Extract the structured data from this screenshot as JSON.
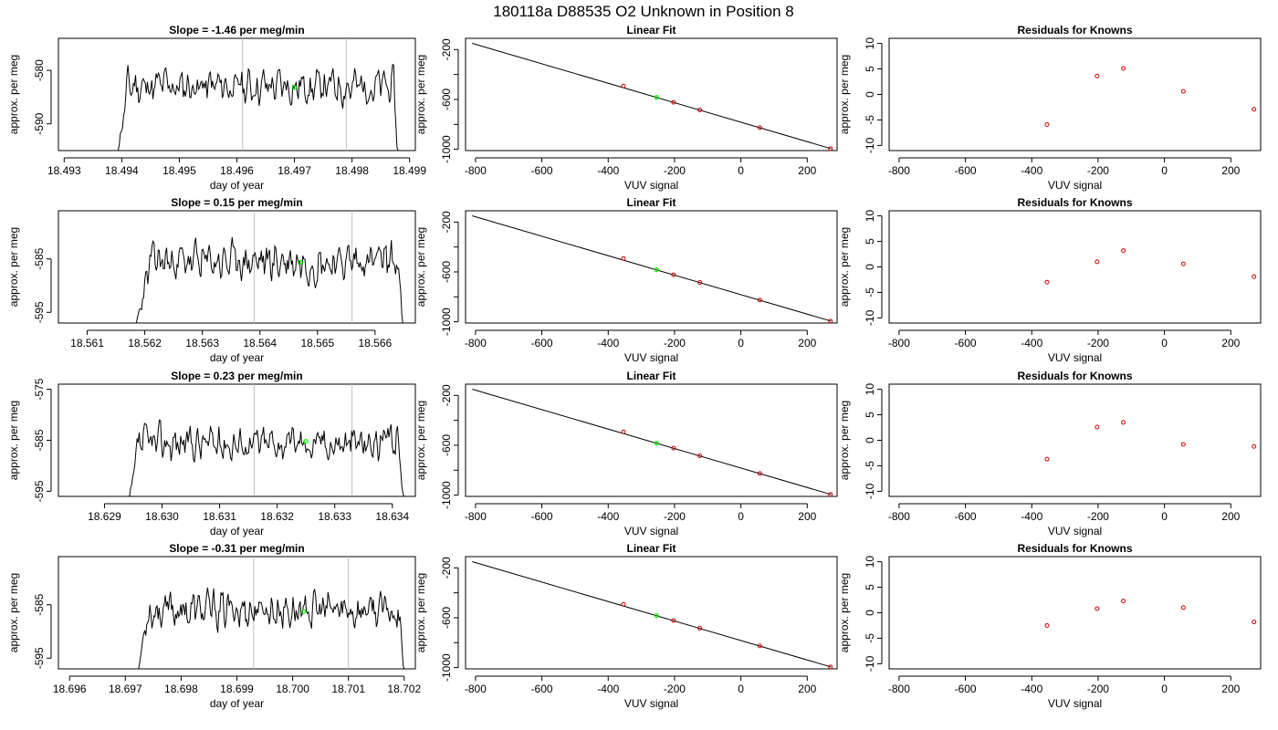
{
  "page_title": "180118a     D88535   O2 Unknown in Position  8",
  "colors": {
    "trace": "#000000",
    "marker": "#00ff00",
    "known": "#cc0000",
    "vline": "#bebebe",
    "frame": "#000000"
  },
  "rows": [
    {
      "timeseries": {
        "title": "Slope =  -1.46  per meg/min",
        "xlabel": "day of year",
        "ylabel": "approx. per meg",
        "x_ticks": [
          "18.493",
          "18.494",
          "18.495",
          "18.496",
          "18.497",
          "18.498",
          "18.499"
        ],
        "y_ticks": [
          "-580",
          "-590"
        ]
      },
      "fit": {
        "title": "Linear Fit",
        "xlabel": "VUV signal",
        "ylabel": "approx. per meg",
        "x_ticks": [
          "-800",
          "-600",
          "-400",
          "-200",
          "0",
          "200"
        ],
        "y_ticks": [
          "-200",
          "-600",
          "-1000"
        ]
      },
      "residuals": {
        "title": "Residuals for Knowns",
        "xlabel": "VUV signal",
        "ylabel": "approx. per meg",
        "x_ticks": [
          "-800",
          "-600",
          "-400",
          "-200",
          "0",
          "200"
        ],
        "y_ticks": [
          "10",
          "5",
          "0",
          "-5",
          "-10"
        ]
      }
    },
    {
      "timeseries": {
        "title": "Slope =  0.15  per meg/min",
        "xlabel": "day of year",
        "ylabel": "approx. per meg",
        "x_ticks": [
          "18.561",
          "18.562",
          "18.563",
          "18.564",
          "18.565",
          "18.566"
        ],
        "y_ticks": [
          "-585",
          "-595"
        ]
      },
      "fit": {
        "title": "Linear Fit",
        "xlabel": "VUV signal",
        "ylabel": "approx. per meg",
        "x_ticks": [
          "-800",
          "-600",
          "-400",
          "-200",
          "0",
          "200"
        ],
        "y_ticks": [
          "-200",
          "-600",
          "-1000"
        ]
      },
      "residuals": {
        "title": "Residuals for Knowns",
        "xlabel": "VUV signal",
        "ylabel": "approx. per meg",
        "x_ticks": [
          "-800",
          "-600",
          "-400",
          "-200",
          "0",
          "200"
        ],
        "y_ticks": [
          "10",
          "5",
          "0",
          "-5",
          "-10"
        ]
      }
    },
    {
      "timeseries": {
        "title": "Slope =  0.23  per meg/min",
        "xlabel": "day of year",
        "ylabel": "approx. per meg",
        "x_ticks": [
          "18.629",
          "18.630",
          "18.631",
          "18.632",
          "18.633",
          "18.634"
        ],
        "y_ticks": [
          "-575",
          "-585",
          "-595"
        ]
      },
      "fit": {
        "title": "Linear Fit",
        "xlabel": "VUV signal",
        "ylabel": "approx. per meg",
        "x_ticks": [
          "-800",
          "-600",
          "-400",
          "-200",
          "0",
          "200"
        ],
        "y_ticks": [
          "-200",
          "-600",
          "-1000"
        ]
      },
      "residuals": {
        "title": "Residuals for Knowns",
        "xlabel": "VUV signal",
        "ylabel": "approx. per meg",
        "x_ticks": [
          "-800",
          "-600",
          "-400",
          "-200",
          "0",
          "200"
        ],
        "y_ticks": [
          "10",
          "5",
          "0",
          "-5",
          "-10"
        ]
      }
    },
    {
      "timeseries": {
        "title": "Slope =  -0.31  per meg/min",
        "xlabel": "day of year",
        "ylabel": "approx. per meg",
        "x_ticks": [
          "18.696",
          "18.697",
          "18.698",
          "18.699",
          "18.700",
          "18.701",
          "18.702"
        ],
        "y_ticks": [
          "-585",
          "-595"
        ]
      },
      "fit": {
        "title": "Linear Fit",
        "xlabel": "VUV signal",
        "ylabel": "approx. per meg",
        "x_ticks": [
          "-800",
          "-600",
          "-400",
          "-200",
          "0",
          "200"
        ],
        "y_ticks": [
          "-200",
          "-600",
          "-1000"
        ]
      },
      "residuals": {
        "title": "Residuals for Knowns",
        "xlabel": "VUV signal",
        "ylabel": "approx. per meg",
        "x_ticks": [
          "-800",
          "-600",
          "-400",
          "-200",
          "0",
          "200"
        ],
        "y_ticks": [
          "10",
          "5",
          "0",
          "-5",
          "-10"
        ]
      }
    }
  ],
  "chart_data": [
    {
      "type": "line",
      "title": "Slope =  -1.46  per meg/min",
      "xlabel": "day of year",
      "ylabel": "approx. per meg",
      "xlim": [
        18.4929,
        18.4991
      ],
      "ylim": [
        -595,
        -574
      ],
      "x_ticks": [
        18.493,
        18.494,
        18.495,
        18.496,
        18.497,
        18.498,
        18.499
      ],
      "y_ticks": [
        -580,
        -590
      ],
      "trace": {
        "x_start": 18.4939,
        "x_end": 18.4988,
        "base": -583,
        "amp": 2.6,
        "seed": 11,
        "ramp": 0.0002
      },
      "vlines": [
        18.4961,
        18.4979
      ],
      "marker": {
        "x": 18.497,
        "y": -583.2
      }
    },
    {
      "type": "line",
      "title": "Slope =  0.15  per meg/min",
      "xlabel": "day of year",
      "ylabel": "approx. per meg",
      "xlim": [
        18.5605,
        18.5667
      ],
      "ylim": [
        -597,
        -576
      ],
      "x_ticks": [
        18.561,
        18.562,
        18.563,
        18.564,
        18.565,
        18.566
      ],
      "y_ticks": [
        -585,
        -595
      ],
      "trace": {
        "x_start": 18.5618,
        "x_end": 18.5665,
        "base": -585.5,
        "amp": 2.8,
        "seed": 23,
        "ramp": 0.0003
      },
      "vlines": [
        18.5639,
        18.5656
      ],
      "marker": {
        "x": 18.5647,
        "y": -585.6
      }
    },
    {
      "type": "line",
      "title": "Slope =  0.23  per meg/min",
      "xlabel": "day of year",
      "ylabel": "approx. per meg",
      "xlim": [
        18.6282,
        18.6344
      ],
      "ylim": [
        -596,
        -574
      ],
      "x_ticks": [
        18.629,
        18.63,
        18.631,
        18.632,
        18.633,
        18.634
      ],
      "y_ticks": [
        -575,
        -585,
        -595
      ],
      "trace": {
        "x_start": 18.6294,
        "x_end": 18.6342,
        "base": -585.5,
        "amp": 2.7,
        "seed": 37,
        "ramp": 0.0002
      },
      "vlines": [
        18.6316,
        18.6333
      ],
      "marker": {
        "x": 18.6325,
        "y": -585.2
      }
    },
    {
      "type": "line",
      "title": "Slope =  -0.31  per meg/min",
      "xlabel": "day of year",
      "ylabel": "approx. per meg",
      "xlim": [
        18.6958,
        18.7022
      ],
      "ylim": [
        -597,
        -576
      ],
      "x_ticks": [
        18.696,
        18.697,
        18.698,
        18.699,
        18.7,
        18.701,
        18.702
      ],
      "y_ticks": [
        -585,
        -595
      ],
      "trace": {
        "x_start": 18.6972,
        "x_end": 18.702,
        "base": -586,
        "amp": 2.7,
        "seed": 53,
        "ramp": 0.0002
      },
      "vlines": [
        18.6993,
        18.701
      ],
      "marker": {
        "x": 18.7002,
        "y": -586.3
      }
    },
    {
      "type": "scatter",
      "title": "Linear Fit",
      "xlabel": "VUV signal",
      "ylabel": "approx. per meg",
      "xlim": [
        -830,
        290
      ],
      "ylim": [
        -1010,
        -110
      ],
      "fit_line": [
        [
          -810,
          -150
        ],
        [
          272,
          -995
        ]
      ],
      "known_points": [
        [
          -354,
          -492
        ],
        [
          -203,
          -623
        ],
        [
          -124,
          -684
        ],
        [
          57,
          -826
        ],
        [
          270,
          -994
        ]
      ],
      "unknown_point": [
        -254,
        -583
      ]
    },
    {
      "type": "scatter",
      "title": "Residuals for Knowns",
      "xlabel": "VUV signal",
      "ylabel": "approx. per meg",
      "xlim": [
        -830,
        290
      ],
      "ylim": [
        -11,
        11
      ],
      "series": [
        {
          "rows": [
            1,
            2,
            3,
            4
          ],
          "x": [
            -354,
            -203,
            -124,
            57,
            270
          ],
          "y_by_row": [
            [
              -5.9,
              3.6,
              5.1,
              0.6,
              -2.9
            ],
            [
              -3.0,
              1.0,
              3.2,
              0.6,
              -1.9
            ],
            [
              -3.7,
              2.6,
              3.5,
              -0.8,
              -1.2
            ],
            [
              -2.5,
              0.8,
              2.3,
              1.0,
              -1.8
            ]
          ]
        }
      ]
    }
  ]
}
